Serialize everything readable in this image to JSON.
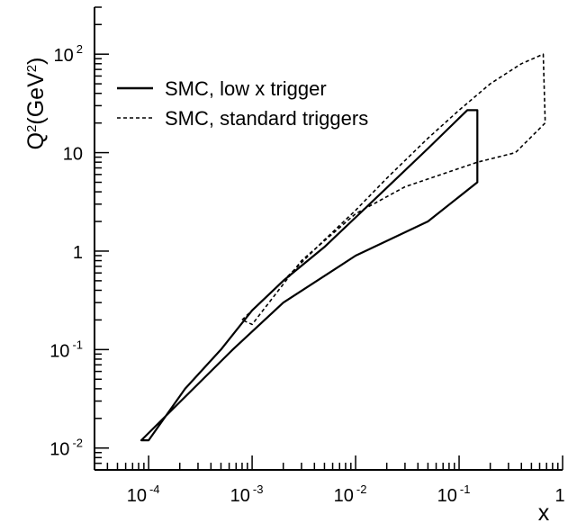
{
  "chart_data": {
    "type": "line",
    "xscale": "log",
    "yscale": "log",
    "xlim": [
      3e-05,
      1
    ],
    "ylim": [
      0.006,
      300
    ],
    "xlabel": "x",
    "ylabel": "Q2(GeV2)",
    "ylabel_parts": {
      "base": "Q",
      "sup1": "2",
      "unit_open": "(GeV",
      "sup2": "2",
      "unit_close": ")"
    },
    "grid": false,
    "legend_placement": "top-left",
    "x_ticks": [
      {
        "value": 0.0001,
        "base": "10",
        "exp": "-4"
      },
      {
        "value": 0.001,
        "base": "10",
        "exp": "-3"
      },
      {
        "value": 0.01,
        "base": "10",
        "exp": "-2"
      },
      {
        "value": 0.1,
        "base": "10",
        "exp": "-1"
      },
      {
        "value": 1,
        "base": "1",
        "exp": ""
      }
    ],
    "y_ticks": [
      {
        "value": 0.01,
        "base": "10",
        "exp": "-2"
      },
      {
        "value": 0.1,
        "base": "10",
        "exp": "-1"
      },
      {
        "value": 1,
        "base": "1",
        "exp": ""
      },
      {
        "value": 10,
        "base": "10",
        "exp": ""
      },
      {
        "value": 100,
        "base": "10",
        "exp": "2"
      }
    ],
    "series": [
      {
        "name": "SMC, low x trigger",
        "style": "solid",
        "closed": true,
        "points": [
          [
            8.5e-05,
            0.012
          ],
          [
            0.0001,
            0.012
          ],
          [
            0.000225,
            0.04
          ],
          [
            0.0005,
            0.1
          ],
          [
            0.001,
            0.25
          ],
          [
            0.002,
            0.5
          ],
          [
            0.005,
            1.1
          ],
          [
            0.01,
            2.2
          ],
          [
            0.02,
            4.4
          ],
          [
            0.05,
            11
          ],
          [
            0.12,
            27
          ],
          [
            0.15,
            27
          ],
          [
            0.15,
            5
          ],
          [
            0.05,
            2
          ],
          [
            0.01,
            0.9
          ],
          [
            0.002,
            0.3
          ],
          [
            0.00065,
            0.1
          ],
          [
            8.5e-05,
            0.012
          ]
        ]
      },
      {
        "name": "SMC, standard triggers",
        "style": "dashed",
        "closed": true,
        "points": [
          [
            0.0008,
            0.2
          ],
          [
            0.002,
            0.5
          ],
          [
            0.005,
            1.3
          ],
          [
            0.01,
            2.6
          ],
          [
            0.02,
            5.5
          ],
          [
            0.05,
            14
          ],
          [
            0.1,
            27
          ],
          [
            0.2,
            50
          ],
          [
            0.4,
            80
          ],
          [
            0.65,
            100
          ],
          [
            0.68,
            20
          ],
          [
            0.35,
            10
          ],
          [
            0.15,
            8
          ],
          [
            0.03,
            4.5
          ],
          [
            0.01,
            2.4
          ],
          [
            0.003,
            0.8
          ],
          [
            0.001,
            0.18
          ],
          [
            0.0008,
            0.2
          ]
        ]
      }
    ]
  }
}
